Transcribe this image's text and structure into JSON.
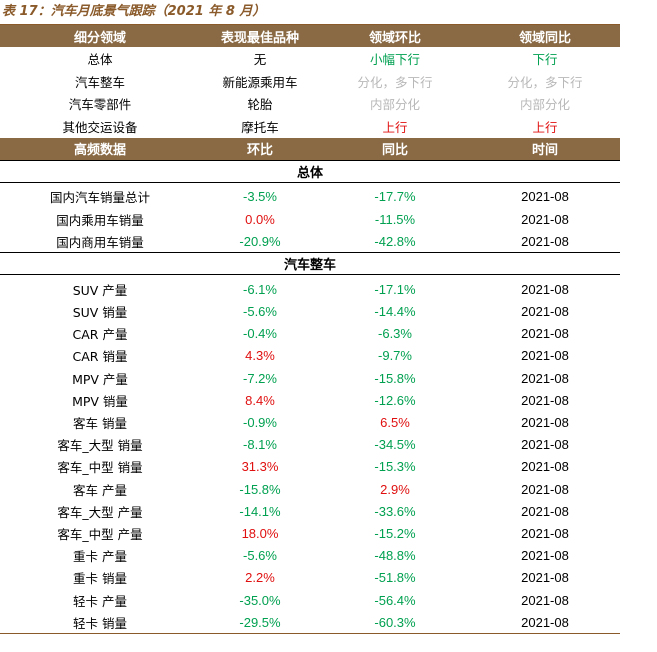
{
  "title": "表 17：汽车月底景气跟踪（2021 年 8 月）",
  "summary": {
    "headers": [
      "细分领域",
      "表现最佳品种",
      "领域环比",
      "领域同比"
    ],
    "rows": [
      {
        "field": "总体",
        "best": "无",
        "mom": "小幅下行",
        "mom_color": "green",
        "yoy": "下行",
        "yoy_color": "green"
      },
      {
        "field": "汽车整车",
        "best": "新能源乘用车",
        "mom": "分化，多下行",
        "mom_color": "grey",
        "yoy": "分化，多下行",
        "yoy_color": "grey"
      },
      {
        "field": "汽车零部件",
        "best": "轮胎",
        "mom": "内部分化",
        "mom_color": "grey",
        "yoy": "内部分化",
        "yoy_color": "grey"
      },
      {
        "field": "其他交运设备",
        "best": "摩托车",
        "mom": "上行",
        "mom_color": "red",
        "yoy": "上行",
        "yoy_color": "red"
      }
    ]
  },
  "detail": {
    "headers": [
      "高频数据",
      "环比",
      "同比",
      "时间"
    ],
    "sections": [
      {
        "name": "总体",
        "rows": [
          {
            "label": "国内汽车销量总计",
            "mom": "-3.5%",
            "yoy": "-17.7%",
            "date": "2021-08"
          },
          {
            "label": "国内乘用车销量",
            "mom": "0.0%",
            "yoy": "-11.5%",
            "date": "2021-08"
          },
          {
            "label": "国内商用车销量",
            "mom": "-20.9%",
            "yoy": "-42.8%",
            "date": "2021-08"
          }
        ]
      },
      {
        "name": "汽车整车",
        "rows": [
          {
            "label": "SUV 产量",
            "mom": "-6.1%",
            "yoy": "-17.1%",
            "date": "2021-08"
          },
          {
            "label": "SUV 销量",
            "mom": "-5.6%",
            "yoy": "-14.4%",
            "date": "2021-08"
          },
          {
            "label": "CAR 产量",
            "mom": "-0.4%",
            "yoy": "-6.3%",
            "date": "2021-08"
          },
          {
            "label": "CAR 销量",
            "mom": "4.3%",
            "yoy": "-9.7%",
            "date": "2021-08"
          },
          {
            "label": "MPV 产量",
            "mom": "-7.2%",
            "yoy": "-15.8%",
            "date": "2021-08"
          },
          {
            "label": "MPV 销量",
            "mom": "8.4%",
            "yoy": "-12.6%",
            "date": "2021-08"
          },
          {
            "label": "客车 销量",
            "mom": "-0.9%",
            "yoy": "6.5%",
            "date": "2021-08"
          },
          {
            "label": "客车_大型 销量",
            "mom": "-8.1%",
            "yoy": "-34.5%",
            "date": "2021-08"
          },
          {
            "label": "客车_中型 销量",
            "mom": "31.3%",
            "yoy": "-15.3%",
            "date": "2021-08"
          },
          {
            "label": "客车 产量",
            "mom": "-15.8%",
            "yoy": "2.9%",
            "date": "2021-08"
          },
          {
            "label": "客车_大型 产量",
            "mom": "-14.1%",
            "yoy": "-33.6%",
            "date": "2021-08"
          },
          {
            "label": "客车_中型 产量",
            "mom": "18.0%",
            "yoy": "-15.2%",
            "date": "2021-08"
          },
          {
            "label": "重卡 产量",
            "mom": "-5.6%",
            "yoy": "-48.8%",
            "date": "2021-08"
          },
          {
            "label": "重卡 销量",
            "mom": "2.2%",
            "yoy": "-51.8%",
            "date": "2021-08"
          },
          {
            "label": "轻卡 产量",
            "mom": "-35.0%",
            "yoy": "-56.4%",
            "date": "2021-08"
          },
          {
            "label": "轻卡 销量",
            "mom": "-29.5%",
            "yoy": "-60.3%",
            "date": "2021-08"
          }
        ]
      }
    ]
  },
  "colors": {
    "header_bg": "#8a6a45",
    "title": "#8a5a2a",
    "green": "#00a050",
    "red": "#e01010",
    "grey": "#b8b8b8"
  }
}
